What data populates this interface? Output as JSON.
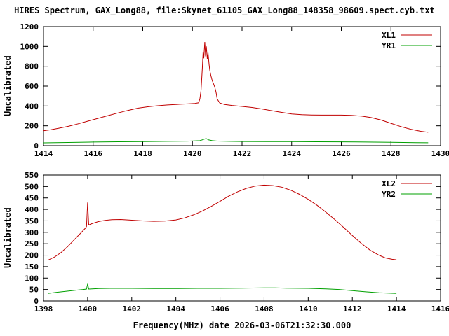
{
  "title": "HIRES Spectrum, GAX_Long88, file:Skynet_61105_GAX_Long88_148358_98609.spect.cyb.txt",
  "xlabel": "Frequency(MHz) date 2026-03-06T21:32:30.000",
  "colors": {
    "red": "#c00000",
    "green": "#00a000",
    "axis": "#000000",
    "background": "#ffffff"
  },
  "chart_data": [
    {
      "type": "line",
      "ylabel": "Uncalibrated",
      "xlim": [
        1414,
        1430
      ],
      "xtick_step": 2,
      "ylim": [
        0,
        1200
      ],
      "ytick_step": 200,
      "legend_position": "top-right",
      "series": [
        {
          "name": "XL1",
          "color": "#c00000",
          "points": [
            [
              1414.0,
              150
            ],
            [
              1414.3,
              160
            ],
            [
              1414.6,
              175
            ],
            [
              1415.0,
              195
            ],
            [
              1415.4,
              220
            ],
            [
              1415.8,
              248
            ],
            [
              1416.2,
              275
            ],
            [
              1416.6,
              303
            ],
            [
              1417.0,
              330
            ],
            [
              1417.4,
              355
            ],
            [
              1417.8,
              378
            ],
            [
              1418.2,
              392
            ],
            [
              1418.6,
              402
            ],
            [
              1419.0,
              410
            ],
            [
              1419.4,
              416
            ],
            [
              1419.8,
              421
            ],
            [
              1420.1,
              425
            ],
            [
              1420.25,
              432
            ],
            [
              1420.3,
              470
            ],
            [
              1420.35,
              560
            ],
            [
              1420.4,
              780
            ],
            [
              1420.43,
              950
            ],
            [
              1420.46,
              880
            ],
            [
              1420.5,
              1045
            ],
            [
              1420.53,
              900
            ],
            [
              1420.56,
              1000
            ],
            [
              1420.6,
              870
            ],
            [
              1420.63,
              940
            ],
            [
              1420.67,
              820
            ],
            [
              1420.7,
              760
            ],
            [
              1420.75,
              700
            ],
            [
              1420.8,
              655
            ],
            [
              1420.85,
              625
            ],
            [
              1420.9,
              590
            ],
            [
              1420.95,
              540
            ],
            [
              1421.0,
              470
            ],
            [
              1421.1,
              430
            ],
            [
              1421.3,
              415
            ],
            [
              1421.6,
              405
            ],
            [
              1422.0,
              395
            ],
            [
              1422.4,
              385
            ],
            [
              1422.8,
              370
            ],
            [
              1423.2,
              352
            ],
            [
              1423.6,
              335
            ],
            [
              1424.0,
              320
            ],
            [
              1424.4,
              312
            ],
            [
              1424.8,
              309
            ],
            [
              1425.2,
              308
            ],
            [
              1425.6,
              308
            ],
            [
              1426.0,
              308
            ],
            [
              1426.4,
              305
            ],
            [
              1426.8,
              298
            ],
            [
              1427.2,
              283
            ],
            [
              1427.6,
              258
            ],
            [
              1428.0,
              225
            ],
            [
              1428.4,
              192
            ],
            [
              1428.8,
              165
            ],
            [
              1429.2,
              145
            ],
            [
              1429.5,
              135
            ]
          ]
        },
        {
          "name": "YR1",
          "color": "#00a000",
          "points": [
            [
              1414.0,
              28
            ],
            [
              1415.0,
              32
            ],
            [
              1416.0,
              36
            ],
            [
              1417.0,
              39
            ],
            [
              1418.0,
              41
            ],
            [
              1419.0,
              43
            ],
            [
              1419.8,
              45
            ],
            [
              1420.3,
              50
            ],
            [
              1420.45,
              62
            ],
            [
              1420.55,
              72
            ],
            [
              1420.65,
              58
            ],
            [
              1420.8,
              50
            ],
            [
              1421.0,
              46
            ],
            [
              1421.5,
              43
            ],
            [
              1422.0,
              42
            ],
            [
              1423.0,
              41
            ],
            [
              1424.0,
              40
            ],
            [
              1425.0,
              39
            ],
            [
              1426.0,
              38
            ],
            [
              1427.0,
              36
            ],
            [
              1428.0,
              33
            ],
            [
              1429.0,
              30
            ],
            [
              1429.5,
              29
            ]
          ]
        }
      ]
    },
    {
      "type": "line",
      "ylabel": "Uncalibrated",
      "xlim": [
        1398,
        1416
      ],
      "xtick_step": 2,
      "ylim": [
        0,
        550
      ],
      "ytick_step": 50,
      "legend_position": "top-right",
      "series": [
        {
          "name": "XL2",
          "color": "#c00000",
          "points": [
            [
              1398.2,
              178
            ],
            [
              1398.5,
              192
            ],
            [
              1398.8,
              212
            ],
            [
              1399.1,
              238
            ],
            [
              1399.4,
              268
            ],
            [
              1399.7,
              298
            ],
            [
              1399.9,
              318
            ],
            [
              1399.95,
              325
            ],
            [
              1400.0,
              430
            ],
            [
              1400.05,
              332
            ],
            [
              1400.2,
              338
            ],
            [
              1400.5,
              347
            ],
            [
              1400.8,
              352
            ],
            [
              1401.1,
              355
            ],
            [
              1401.5,
              356
            ],
            [
              1402.0,
              353
            ],
            [
              1402.5,
              350
            ],
            [
              1403.0,
              348
            ],
            [
              1403.5,
              349
            ],
            [
              1404.0,
              354
            ],
            [
              1404.4,
              363
            ],
            [
              1404.8,
              376
            ],
            [
              1405.2,
              393
            ],
            [
              1405.6,
              413
            ],
            [
              1406.0,
              435
            ],
            [
              1406.4,
              458
            ],
            [
              1406.8,
              477
            ],
            [
              1407.2,
              492
            ],
            [
              1407.6,
              502
            ],
            [
              1408.0,
              506
            ],
            [
              1408.4,
              504
            ],
            [
              1408.8,
              497
            ],
            [
              1409.2,
              484
            ],
            [
              1409.6,
              466
            ],
            [
              1410.0,
              444
            ],
            [
              1410.4,
              418
            ],
            [
              1410.8,
              388
            ],
            [
              1411.2,
              356
            ],
            [
              1411.6,
              322
            ],
            [
              1412.0,
              286
            ],
            [
              1412.4,
              252
            ],
            [
              1412.8,
              222
            ],
            [
              1413.2,
              200
            ],
            [
              1413.5,
              188
            ],
            [
              1413.8,
              182
            ],
            [
              1414.0,
              180
            ]
          ]
        },
        {
          "name": "YR2",
          "color": "#00a000",
          "points": [
            [
              1398.2,
              33
            ],
            [
              1398.6,
              38
            ],
            [
              1399.0,
              42
            ],
            [
              1399.4,
              46
            ],
            [
              1399.8,
              50
            ],
            [
              1399.95,
              52
            ],
            [
              1400.0,
              75
            ],
            [
              1400.05,
              52
            ],
            [
              1400.5,
              54
            ],
            [
              1401.0,
              55
            ],
            [
              1402.0,
              55
            ],
            [
              1403.0,
              54
            ],
            [
              1404.0,
              54
            ],
            [
              1405.0,
              55
            ],
            [
              1406.0,
              55
            ],
            [
              1407.0,
              56
            ],
            [
              1408.0,
              57
            ],
            [
              1408.5,
              57
            ],
            [
              1409.0,
              56
            ],
            [
              1410.0,
              55
            ],
            [
              1410.8,
              53
            ],
            [
              1411.4,
              50
            ],
            [
              1412.0,
              45
            ],
            [
              1412.6,
              40
            ],
            [
              1413.2,
              36
            ],
            [
              1413.7,
              34
            ],
            [
              1414.0,
              33
            ]
          ]
        }
      ]
    }
  ]
}
